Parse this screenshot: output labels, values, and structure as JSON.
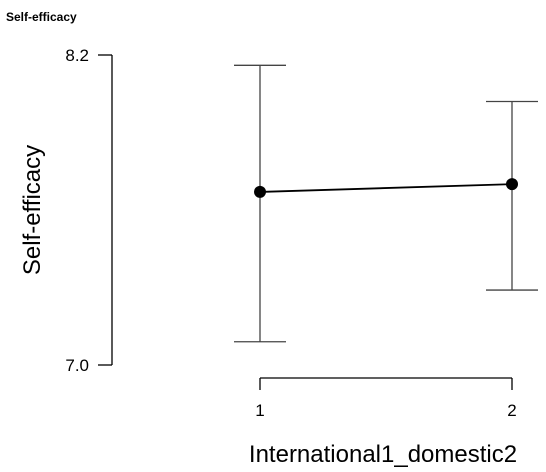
{
  "header": {
    "title": "Self-efficacy"
  },
  "chart_data": {
    "type": "line",
    "title": "",
    "xlabel": "International1_domestic2",
    "ylabel": "Self-efficacy",
    "categories": [
      "1",
      "2"
    ],
    "y_ticks": [
      "7.0",
      "8.2"
    ],
    "ylim": [
      7.0,
      8.2
    ],
    "series": [
      {
        "values": [
          7.67,
          7.7
        ],
        "error_lower": [
          7.09,
          7.29
        ],
        "error_upper": [
          8.16,
          8.02
        ]
      }
    ],
    "grid": false,
    "colors": {
      "line": "#000000",
      "point": "#000000"
    }
  }
}
